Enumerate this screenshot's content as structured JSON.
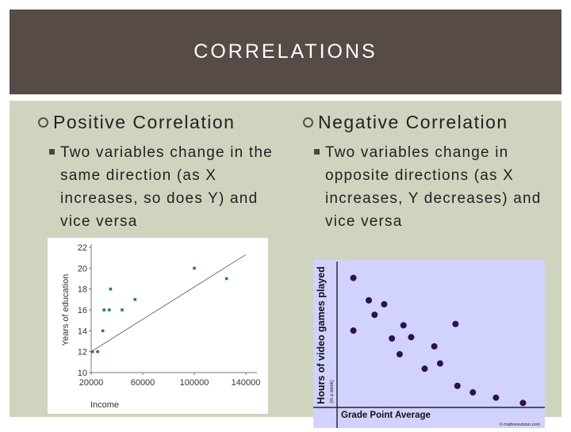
{
  "slide": {
    "title": "CORRELATIONS",
    "left": {
      "heading": "Positive Correlation",
      "description": "Two variables change in the same direction (as X increases, so does Y) and vice versa"
    },
    "right": {
      "heading": "Negative Correlation",
      "description": "Two variables change in opposite directions (as X increases, Y decreases) and vice versa"
    }
  },
  "chart_data": [
    {
      "type": "scatter",
      "title": "",
      "xlabel": "Income",
      "ylabel": "Years of education",
      "xlim": [
        20000,
        140000
      ],
      "ylim": [
        10,
        22
      ],
      "xticks": [
        "20000",
        "60000",
        "100000",
        "140000"
      ],
      "yticks": [
        "10",
        "12",
        "14",
        "16",
        "18",
        "20",
        "22"
      ],
      "points": [
        {
          "x": 21000,
          "y": 12
        },
        {
          "x": 25000,
          "y": 12
        },
        {
          "x": 29000,
          "y": 14
        },
        {
          "x": 30000,
          "y": 16
        },
        {
          "x": 34000,
          "y": 16
        },
        {
          "x": 35000,
          "y": 18
        },
        {
          "x": 44000,
          "y": 16
        },
        {
          "x": 54000,
          "y": 17
        },
        {
          "x": 100000,
          "y": 20
        },
        {
          "x": 125000,
          "y": 19
        }
      ],
      "trendline": [
        [
          20000,
          12.0
        ],
        [
          140000,
          21.3
        ]
      ],
      "point_color": "#2a7a7a",
      "grid": false
    },
    {
      "type": "scatter",
      "title": "",
      "xlabel": "Grade Point Average",
      "ylabel": "Hours of video games played",
      "ylabel_sub": "(in a week)",
      "watermark": "© mathsrevision.com",
      "background_color": "#d2d2ff",
      "point_color": "#2b1055",
      "xlim": [
        0,
        10
      ],
      "ylim": [
        0,
        10
      ],
      "points": [
        {
          "x": 0.6,
          "y": 9.6
        },
        {
          "x": 0.6,
          "y": 5.6
        },
        {
          "x": 1.4,
          "y": 7.9
        },
        {
          "x": 1.7,
          "y": 6.8
        },
        {
          "x": 2.2,
          "y": 7.6
        },
        {
          "x": 2.6,
          "y": 5.0
        },
        {
          "x": 3.0,
          "y": 3.8
        },
        {
          "x": 3.2,
          "y": 6.0
        },
        {
          "x": 3.6,
          "y": 5.1
        },
        {
          "x": 4.3,
          "y": 2.7
        },
        {
          "x": 4.8,
          "y": 4.4
        },
        {
          "x": 5.1,
          "y": 3.1
        },
        {
          "x": 5.9,
          "y": 6.1
        },
        {
          "x": 6.0,
          "y": 1.4
        },
        {
          "x": 6.8,
          "y": 0.9
        },
        {
          "x": 8.0,
          "y": 0.5
        },
        {
          "x": 9.4,
          "y": 0.1
        }
      ],
      "grid": false
    }
  ]
}
